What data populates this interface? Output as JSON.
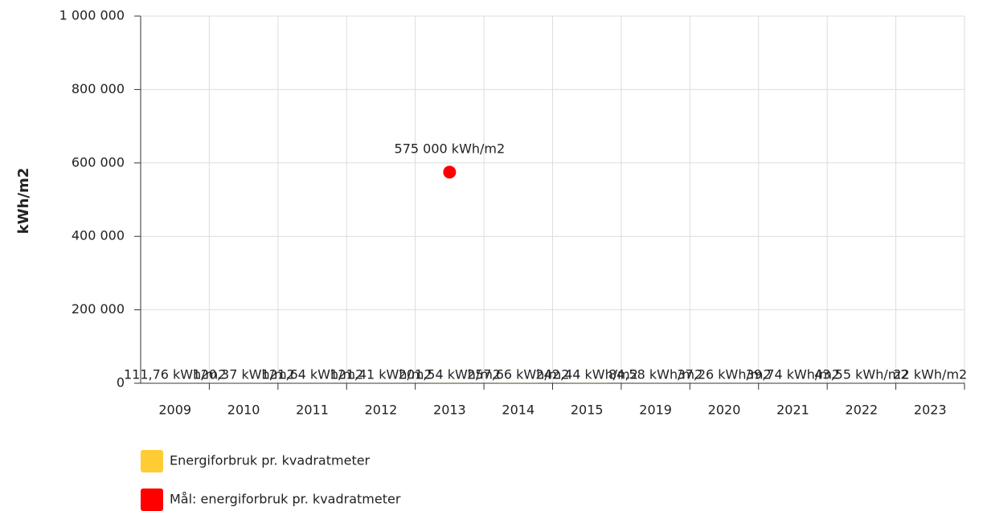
{
  "chart_data": {
    "type": "bar",
    "y_label": "kWh/m2",
    "categories": [
      "2009",
      "2010",
      "2011",
      "2012",
      "2013",
      "2014",
      "2015",
      "2019",
      "2020",
      "2021",
      "2022",
      "2023"
    ],
    "series": [
      {
        "name": "Energiforbruk pr. kvadratmeter",
        "color": "#ffcc33",
        "type": "bar",
        "values": [
          111.76,
          120.37,
          121.64,
          121.41,
          201.54,
          257.66,
          242.44,
          84.58,
          37.26,
          39.74,
          43.55,
          22
        ],
        "value_labels": [
          "111,76 kWh/m2",
          "120,37 kWh/m2",
          "121,64 kWh/m2",
          "121,41 kWh/m2",
          "201,54 kWh/m2",
          "257,66 kWh/m2",
          "242,44 kWh/m2",
          "84,58 kWh/m2",
          "37,26 kWh/m2",
          "39,74 kWh/m2",
          "43,55 kWh/m2",
          "22 kWh/m2"
        ]
      },
      {
        "name": "Mål: energiforbruk pr. kvadratmeter",
        "color": "#ff0000",
        "type": "scatter",
        "values": [
          null,
          null,
          null,
          null,
          575000,
          null,
          null,
          null,
          null,
          null,
          null,
          null
        ],
        "value_labels": [
          null,
          null,
          null,
          null,
          "575 000 kWh/m2",
          null,
          null,
          null,
          null,
          null,
          null,
          null
        ]
      }
    ],
    "ylim": [
      0,
      1000000
    ],
    "yticks": [
      0,
      {
        "value": 200000,
        "label": "200 000"
      },
      {
        "value": 400000,
        "label": "400 000"
      },
      {
        "value": 600000,
        "label": "600 000"
      },
      {
        "value": 800000,
        "label": "800 000"
      },
      {
        "value": 1000000,
        "label": "1 000 000"
      }
    ],
    "grid": true,
    "legend": "bottom"
  }
}
